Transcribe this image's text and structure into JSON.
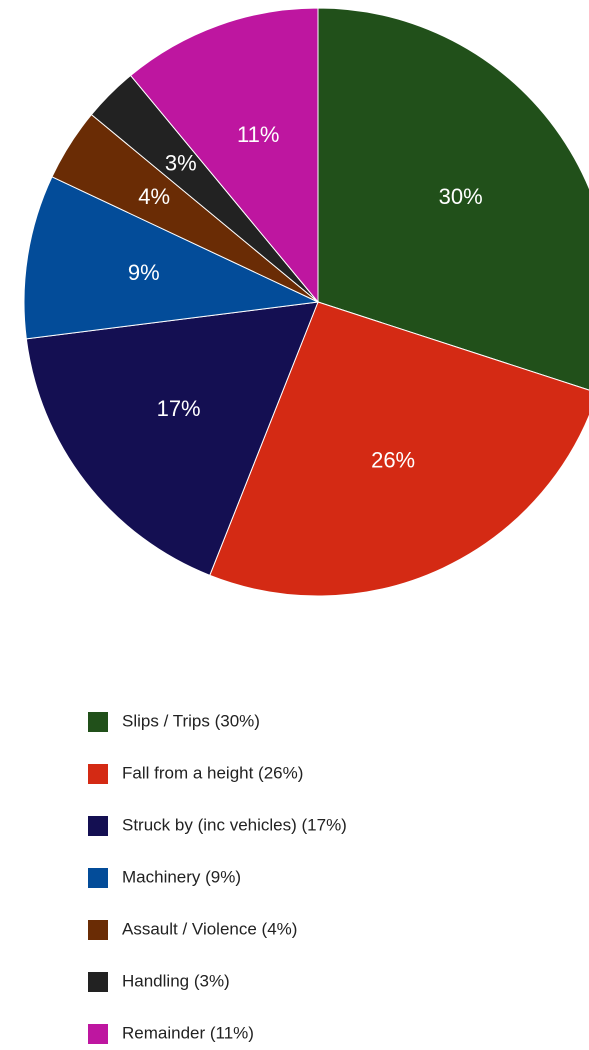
{
  "chart_data": {
    "type": "pie",
    "categories": [
      "Slips / Trips (30%)",
      "Fall from a height (26%)",
      "Struck by (inc vehicles) (17%)",
      "Machinery (9%)",
      "Assault / Violence (4%)",
      "Handling (3%)",
      "Remainder (11%)"
    ],
    "values": [
      30,
      26,
      17,
      9,
      4,
      3,
      11
    ],
    "value_labels": [
      "30%",
      "26%",
      "17%",
      "9%",
      "4%",
      "3%",
      "11%"
    ],
    "colors": [
      "#21501a",
      "#d42a14",
      "#140f52",
      "#034c99",
      "#6a2c05",
      "#222222",
      "#be16a0"
    ]
  }
}
